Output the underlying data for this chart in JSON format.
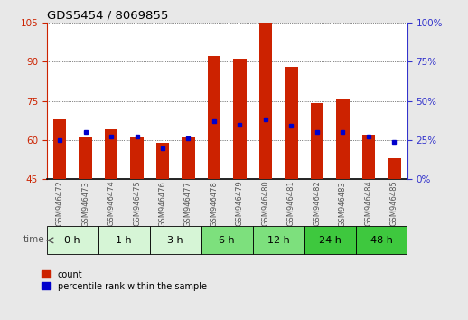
{
  "title": "GDS5454 / 8069855",
  "samples": [
    "GSM946472",
    "GSM946473",
    "GSM946474",
    "GSM946475",
    "GSM946476",
    "GSM946477",
    "GSM946478",
    "GSM946479",
    "GSM946480",
    "GSM946481",
    "GSM946482",
    "GSM946483",
    "GSM946484",
    "GSM946485"
  ],
  "count_values": [
    68,
    61,
    64,
    61,
    59,
    61,
    92,
    91,
    105,
    88,
    74,
    76,
    62,
    53
  ],
  "percentile_values": [
    25,
    30,
    27,
    27,
    20,
    26,
    37,
    35,
    38,
    34,
    30,
    30,
    27,
    24
  ],
  "time_groups": [
    {
      "label": "0 h",
      "indices": [
        0,
        1
      ]
    },
    {
      "label": "1 h",
      "indices": [
        2,
        3
      ]
    },
    {
      "label": "3 h",
      "indices": [
        4,
        5
      ]
    },
    {
      "label": "6 h",
      "indices": [
        6,
        7
      ]
    },
    {
      "label": "12 h",
      "indices": [
        8,
        9
      ]
    },
    {
      "label": "24 h",
      "indices": [
        10,
        11
      ]
    },
    {
      "label": "48 h",
      "indices": [
        12,
        13
      ]
    }
  ],
  "group_colors": {
    "0 h": "#d6f5d6",
    "1 h": "#d6f5d6",
    "3 h": "#d6f5d6",
    "6 h": "#7de07d",
    "12 h": "#7de07d",
    "24 h": "#3ec83e",
    "48 h": "#3ec83e"
  },
  "ylim_left": [
    45,
    105
  ],
  "ylim_right": [
    0,
    100
  ],
  "yticks_left": [
    45,
    60,
    75,
    90,
    105
  ],
  "yticks_right": [
    0,
    25,
    50,
    75,
    100
  ],
  "bar_color": "#cc2200",
  "marker_color": "#0000cc",
  "bg_color": "#e8e8e8",
  "plot_bg": "#ffffff",
  "left_axis_color": "#cc2200",
  "right_axis_color": "#3333cc",
  "bar_width": 0.5,
  "sample_label_color": "#555555",
  "grid_color": "#111111"
}
